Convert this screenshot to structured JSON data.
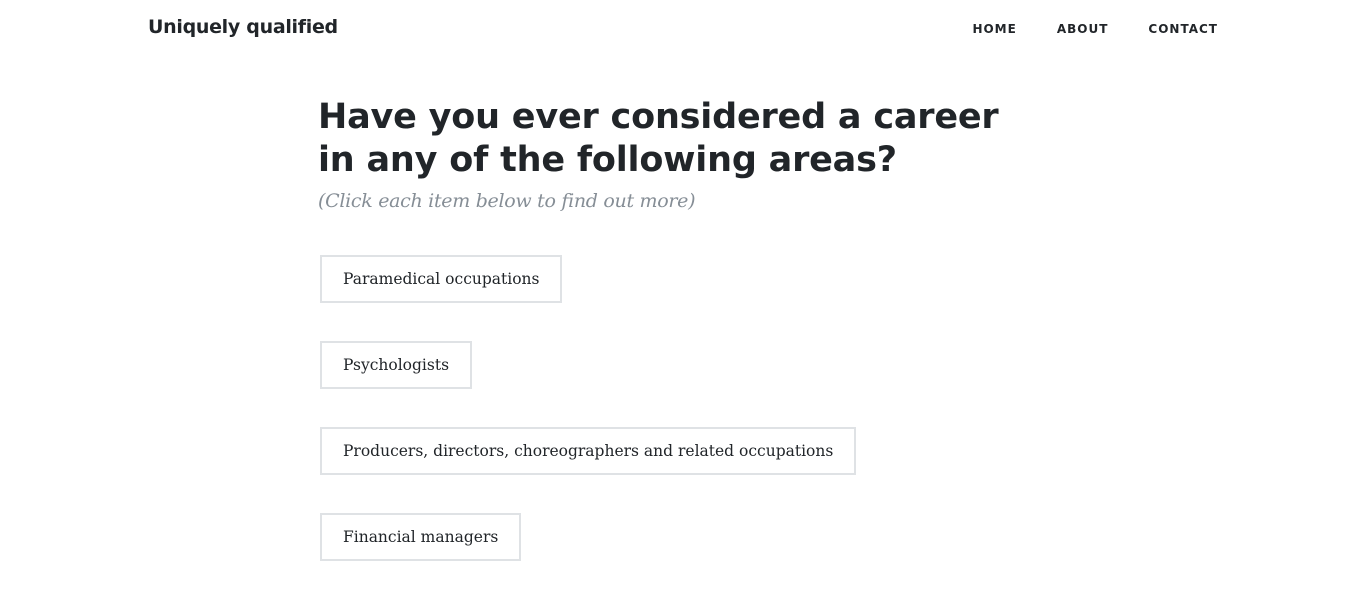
{
  "navbar": {
    "brand": "Uniquely qualified",
    "links": [
      {
        "label": "HOME"
      },
      {
        "label": "ABOUT"
      },
      {
        "label": "CONTACT"
      }
    ]
  },
  "main": {
    "heading": "Have you ever considered a career in any of the following areas?",
    "subheading": "(Click each item below to find out more)",
    "items": [
      {
        "label": "Paramedical occupations"
      },
      {
        "label": "Psychologists"
      },
      {
        "label": "Producers, directors, choreographers and related occupations"
      },
      {
        "label": "Financial managers"
      }
    ]
  }
}
